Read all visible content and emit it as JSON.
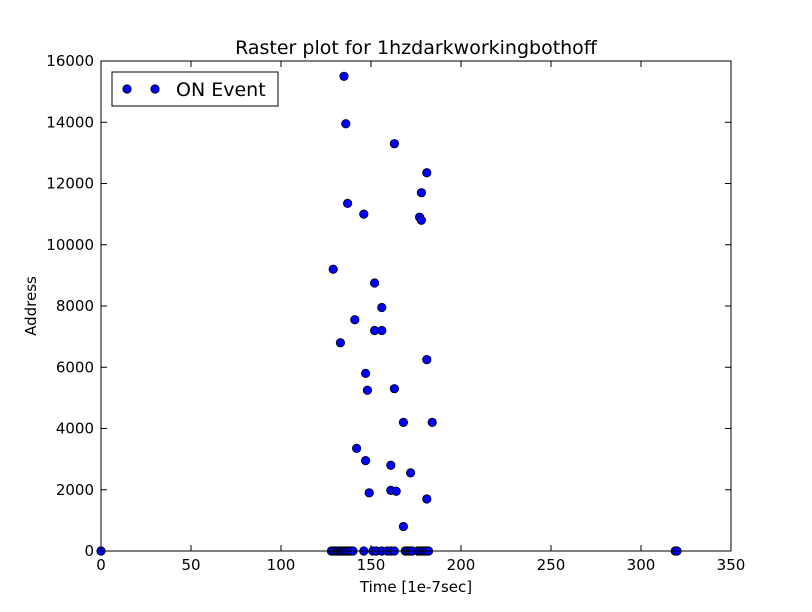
{
  "chart_data": {
    "type": "scatter",
    "title": "Raster plot for 1hzdarkworkingbothoff",
    "xlabel": "Time [1e-7sec]",
    "ylabel": "Address",
    "xlim": [
      0,
      350
    ],
    "ylim": [
      0,
      16000
    ],
    "x_ticks": [
      0,
      50,
      100,
      150,
      200,
      250,
      300,
      350
    ],
    "y_ticks": [
      0,
      2000,
      4000,
      6000,
      8000,
      10000,
      12000,
      14000,
      16000
    ],
    "grid": false,
    "legend": {
      "placement": "top-left",
      "entries": [
        "ON Event"
      ]
    },
    "series": [
      {
        "name": "ON Event",
        "color": "#0000ff",
        "marker": "circle",
        "points": [
          [
            0,
            0
          ],
          [
            128,
            0
          ],
          [
            129,
            0
          ],
          [
            130,
            0
          ],
          [
            131,
            0
          ],
          [
            132,
            0
          ],
          [
            133,
            0
          ],
          [
            134,
            0
          ],
          [
            135,
            0
          ],
          [
            136,
            0
          ],
          [
            137,
            0
          ],
          [
            138,
            0
          ],
          [
            139,
            0
          ],
          [
            140,
            0
          ],
          [
            146,
            0
          ],
          [
            151,
            0
          ],
          [
            153,
            0
          ],
          [
            156,
            0
          ],
          [
            159,
            0
          ],
          [
            161,
            0
          ],
          [
            163,
            0
          ],
          [
            169,
            0
          ],
          [
            170,
            0
          ],
          [
            171,
            0
          ],
          [
            172,
            0
          ],
          [
            173,
            0
          ],
          [
            176,
            0
          ],
          [
            177,
            0
          ],
          [
            178,
            0
          ],
          [
            179,
            0
          ],
          [
            180,
            0
          ],
          [
            181,
            0
          ],
          [
            182,
            0
          ],
          [
            319,
            0
          ],
          [
            320,
            0
          ],
          [
            135,
            15500
          ],
          [
            136,
            13950
          ],
          [
            163,
            13300
          ],
          [
            181,
            12350
          ],
          [
            178,
            11700
          ],
          [
            137,
            11350
          ],
          [
            146,
            11000
          ],
          [
            177,
            10900
          ],
          [
            178,
            10800
          ],
          [
            129,
            9200
          ],
          [
            152,
            8750
          ],
          [
            156,
            7950
          ],
          [
            141,
            7550
          ],
          [
            152,
            7200
          ],
          [
            156,
            7200
          ],
          [
            133,
            6800
          ],
          [
            181,
            6250
          ],
          [
            147,
            5800
          ],
          [
            148,
            5250
          ],
          [
            163,
            5300
          ],
          [
            168,
            4200
          ],
          [
            184,
            4200
          ],
          [
            142,
            3350
          ],
          [
            147,
            2950
          ],
          [
            161,
            2800
          ],
          [
            172,
            2550
          ],
          [
            149,
            1900
          ],
          [
            161,
            1980
          ],
          [
            164,
            1950
          ],
          [
            181,
            1700
          ],
          [
            168,
            800
          ]
        ]
      }
    ]
  }
}
